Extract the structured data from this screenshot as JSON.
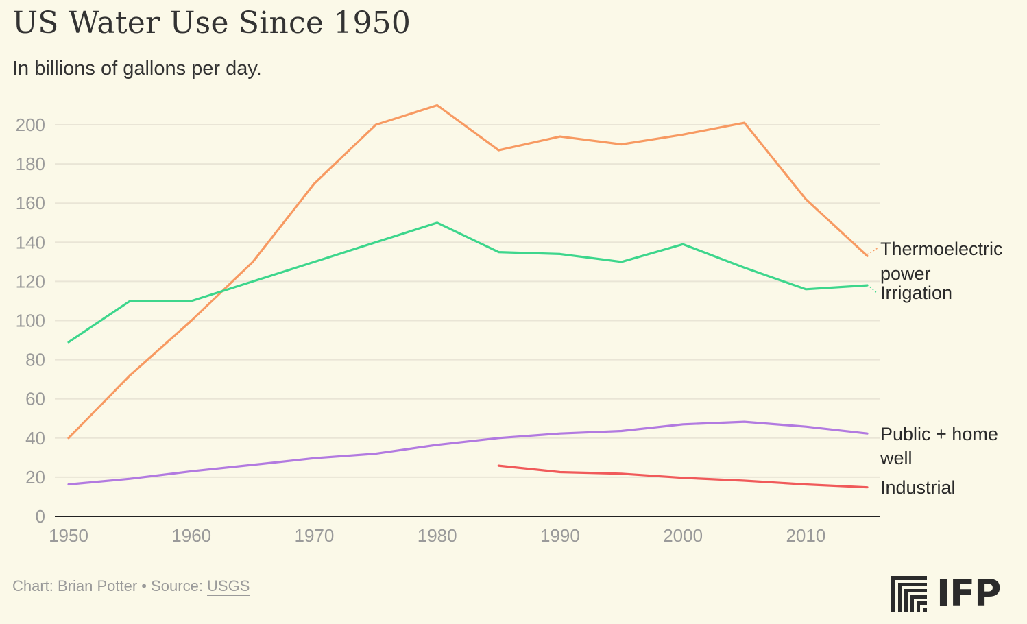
{
  "title": "US Water Use Since 1950",
  "subtitle": "In billions of gallons per day.",
  "footer": {
    "prefix": "Chart: Brian Potter • Source: ",
    "source_link": "USGS"
  },
  "logo": {
    "text": "IFP"
  },
  "colors": {
    "background": "#fbf9e8",
    "thermoelectric": "#f79a62",
    "irrigation": "#3dd68c",
    "public": "#b27ae0",
    "industrial": "#f05a5a",
    "grid": "#e9e5d6",
    "axis": "#222222"
  },
  "chart_data": {
    "type": "line",
    "title": "US Water Use Since 1950",
    "subtitle": "In billions of gallons per day.",
    "xlabel": "",
    "ylabel": "",
    "xlim": [
      1950,
      2016
    ],
    "ylim": [
      0,
      210
    ],
    "xticks": [
      1950,
      1960,
      1970,
      1980,
      1990,
      2000,
      2010
    ],
    "yticks": [
      0,
      20,
      40,
      60,
      80,
      100,
      120,
      140,
      160,
      180,
      200
    ],
    "grid": true,
    "legend": "direct labels at right end of lines",
    "series": [
      {
        "key": "thermoelectric",
        "name": "Thermoelectric power",
        "label_lines": [
          "Thermoelectric",
          "power"
        ],
        "x": [
          1950,
          1955,
          1960,
          1965,
          1970,
          1975,
          1980,
          1985,
          1990,
          1995,
          2000,
          2005,
          2010,
          2015
        ],
        "values": [
          40,
          72,
          100,
          130,
          170,
          200,
          210,
          187,
          194,
          190,
          195,
          201,
          162,
          133
        ]
      },
      {
        "key": "irrigation",
        "name": "Irrigation",
        "label_lines": [
          "Irrigation"
        ],
        "x": [
          1950,
          1955,
          1960,
          1965,
          1970,
          1975,
          1980,
          1985,
          1990,
          1995,
          2000,
          2005,
          2010,
          2015
        ],
        "values": [
          89,
          110,
          110,
          120,
          130,
          140,
          150,
          135,
          134,
          130,
          139,
          127,
          116,
          118
        ]
      },
      {
        "key": "public",
        "name": "Public + home well",
        "label_lines": [
          "Public + home",
          "well"
        ],
        "x": [
          1950,
          1955,
          1960,
          1965,
          1970,
          1975,
          1980,
          1985,
          1990,
          1995,
          2000,
          2005,
          2010,
          2015
        ],
        "values": [
          16.3,
          19.2,
          23,
          26.3,
          29.7,
          32,
          36.5,
          40,
          42.3,
          43.6,
          47,
          48.3,
          45.8,
          42.3
        ]
      },
      {
        "key": "industrial",
        "name": "Industrial",
        "label_lines": [
          "Industrial"
        ],
        "x": [
          1985,
          1990,
          1995,
          2000,
          2005,
          2010,
          2015
        ],
        "values": [
          25.9,
          22.6,
          21.8,
          19.7,
          18.2,
          16.3,
          14.8
        ]
      }
    ]
  }
}
